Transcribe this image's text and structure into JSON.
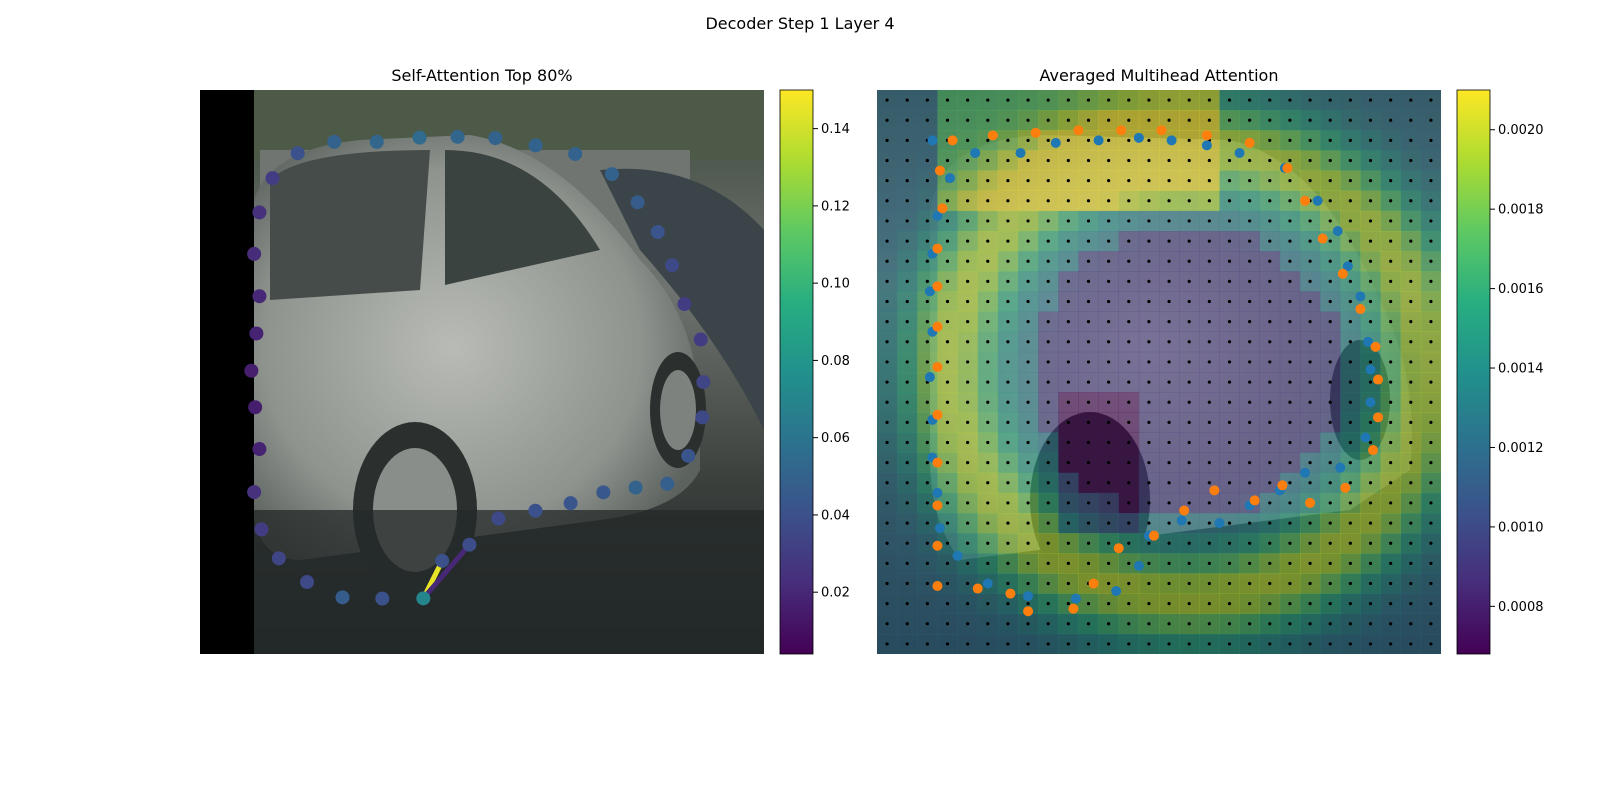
{
  "figure": {
    "title": "Decoder Step 1 Layer 4"
  },
  "chart_data": [
    {
      "type": "scatter",
      "title": "Self-Attention Top 80%",
      "background": "car-photo",
      "xlim": [
        0,
        224
      ],
      "ylim": [
        224,
        0
      ],
      "colormap": "viridis",
      "colorbar": {
        "min": 0.004,
        "max": 0.15,
        "ticks": [
          0.02,
          0.04,
          0.06,
          0.08,
          0.1,
          0.12,
          0.14
        ],
        "tick_labels": [
          "0.02",
          "0.04",
          "0.06",
          "0.08",
          "0.10",
          "0.12",
          "0.14"
        ]
      },
      "points": [
        {
          "x": 88.7,
          "y": 201.9,
          "value": 0.07
        },
        {
          "x": 96.2,
          "y": 187.0,
          "value": 0.04
        },
        {
          "x": 107.0,
          "y": 180.6,
          "value": 0.038
        },
        {
          "x": 118.5,
          "y": 170.2,
          "value": 0.036
        },
        {
          "x": 133.2,
          "y": 167.1,
          "value": 0.04
        },
        {
          "x": 147.2,
          "y": 164.1,
          "value": 0.042
        },
        {
          "x": 160.2,
          "y": 159.8,
          "value": 0.044
        },
        {
          "x": 173.0,
          "y": 157.9,
          "value": 0.05
        },
        {
          "x": 185.6,
          "y": 156.4,
          "value": 0.048
        },
        {
          "x": 193.9,
          "y": 145.3,
          "value": 0.042
        },
        {
          "x": 199.5,
          "y": 130.0,
          "value": 0.036
        },
        {
          "x": 199.9,
          "y": 116.0,
          "value": 0.034
        },
        {
          "x": 198.9,
          "y": 99.1,
          "value": 0.03
        },
        {
          "x": 192.4,
          "y": 85.0,
          "value": 0.03
        },
        {
          "x": 187.5,
          "y": 69.6,
          "value": 0.036
        },
        {
          "x": 181.8,
          "y": 56.4,
          "value": 0.042
        },
        {
          "x": 173.8,
          "y": 44.6,
          "value": 0.046
        },
        {
          "x": 163.6,
          "y": 33.4,
          "value": 0.05
        },
        {
          "x": 149.0,
          "y": 25.4,
          "value": 0.05
        },
        {
          "x": 133.3,
          "y": 22.0,
          "value": 0.05
        },
        {
          "x": 117.3,
          "y": 19.1,
          "value": 0.05
        },
        {
          "x": 102.3,
          "y": 18.6,
          "value": 0.052
        },
        {
          "x": 87.2,
          "y": 18.9,
          "value": 0.054
        },
        {
          "x": 70.2,
          "y": 20.6,
          "value": 0.052
        },
        {
          "x": 53.3,
          "y": 20.6,
          "value": 0.05
        },
        {
          "x": 38.8,
          "y": 25.1,
          "value": 0.04
        },
        {
          "x": 28.8,
          "y": 35.0,
          "value": 0.03
        },
        {
          "x": 23.6,
          "y": 48.6,
          "value": 0.024
        },
        {
          "x": 21.5,
          "y": 65.1,
          "value": 0.022
        },
        {
          "x": 23.6,
          "y": 81.9,
          "value": 0.02
        },
        {
          "x": 22.4,
          "y": 96.7,
          "value": 0.018
        },
        {
          "x": 20.4,
          "y": 111.5,
          "value": 0.016
        },
        {
          "x": 21.9,
          "y": 126.0,
          "value": 0.016
        },
        {
          "x": 23.6,
          "y": 142.6,
          "value": 0.018
        },
        {
          "x": 21.5,
          "y": 159.7,
          "value": 0.024
        },
        {
          "x": 24.4,
          "y": 174.5,
          "value": 0.03
        },
        {
          "x": 31.3,
          "y": 186.0,
          "value": 0.034
        },
        {
          "x": 42.5,
          "y": 195.4,
          "value": 0.036
        },
        {
          "x": 56.6,
          "y": 201.5,
          "value": 0.046
        },
        {
          "x": 72.4,
          "y": 202.0,
          "value": 0.04
        }
      ],
      "attention_lines": [
        {
          "from": 0,
          "to": 1,
          "value": 0.145
        },
        {
          "from": 0,
          "to": 2,
          "value": 0.02
        }
      ]
    },
    {
      "type": "heatmap",
      "title": "Averaged Multihead Attention",
      "background": "car-photo",
      "colormap": "viridis",
      "grid_size": 28,
      "colorbar": {
        "min": 0.00068,
        "max": 0.0021,
        "ticks": [
          0.0008,
          0.001,
          0.0012,
          0.0014,
          0.0016,
          0.0018,
          0.002
        ],
        "tick_labels": [
          "0.0008",
          "0.0010",
          "0.0012",
          "0.0014",
          "0.0016",
          "0.0018",
          "0.0020"
        ]
      },
      "series": [
        {
          "color": "#1f77b4",
          "points": [
            [
              22,
              20
            ],
            [
              39,
              25
            ],
            [
              57,
              25
            ],
            [
              71,
              21
            ],
            [
              88,
              20
            ],
            [
              104,
              19
            ],
            [
              117,
              20
            ],
            [
              131,
              22
            ],
            [
              144,
              25
            ],
            [
              162,
              31
            ],
            [
              175,
              44
            ],
            [
              183,
              56
            ],
            [
              187,
              70
            ],
            [
              192,
              82
            ],
            [
              195,
              100
            ],
            [
              196,
              111
            ],
            [
              196,
              124
            ],
            [
              194,
              138
            ],
            [
              184,
              150
            ],
            [
              170,
              152
            ],
            [
              160,
              159
            ],
            [
              148,
              165
            ],
            [
              136,
              172
            ],
            [
              121,
              171
            ],
            [
              108,
              177
            ],
            [
              104,
              189
            ],
            [
              95,
              199
            ],
            [
              79,
              202
            ],
            [
              60,
              201
            ],
            [
              44,
              196
            ],
            [
              32,
              185
            ],
            [
              25,
              174
            ],
            [
              24,
              160
            ],
            [
              22,
              146
            ],
            [
              22,
              131
            ],
            [
              21,
              114
            ],
            [
              22,
              96
            ],
            [
              21,
              80
            ],
            [
              22,
              65
            ],
            [
              24,
              50
            ],
            [
              29,
              35
            ]
          ]
        },
        {
          "color": "#ff7f0e",
          "points": [
            [
              30,
              20
            ],
            [
              46,
              18
            ],
            [
              63,
              17
            ],
            [
              80,
              16
            ],
            [
              97,
              16
            ],
            [
              113,
              16
            ],
            [
              131,
              18
            ],
            [
              148,
              21
            ],
            [
              163,
              31
            ],
            [
              170,
              44
            ],
            [
              177,
              59
            ],
            [
              185,
              73
            ],
            [
              192,
              87
            ],
            [
              198,
              102
            ],
            [
              199,
              115
            ],
            [
              199,
              130
            ],
            [
              197,
              143
            ],
            [
              186,
              158
            ],
            [
              172,
              164
            ],
            [
              161,
              157
            ],
            [
              150,
              163
            ],
            [
              134,
              159
            ],
            [
              122,
              167
            ],
            [
              110,
              177
            ],
            [
              96,
              182
            ],
            [
              86,
              196
            ],
            [
              78,
              206
            ],
            [
              60,
              207
            ],
            [
              53,
              200
            ],
            [
              40,
              198
            ],
            [
              24,
              197
            ],
            [
              24,
              181
            ],
            [
              24,
              165
            ],
            [
              24,
              148
            ],
            [
              24,
              129
            ],
            [
              24,
              110
            ],
            [
              24,
              94
            ],
            [
              24,
              78
            ],
            [
              24,
              63
            ],
            [
              26,
              47
            ],
            [
              25,
              32
            ]
          ]
        }
      ]
    }
  ]
}
